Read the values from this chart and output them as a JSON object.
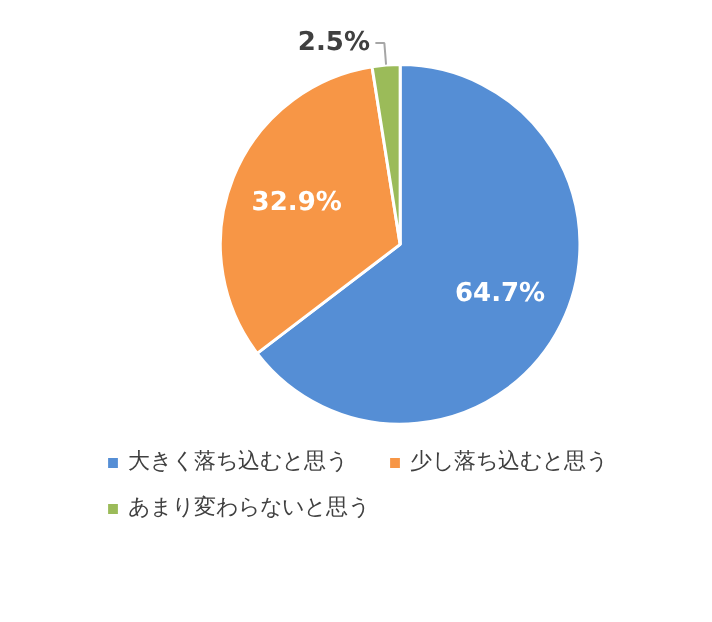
{
  "chart_data": {
    "type": "pie",
    "categories": [
      "大きく落ち込むと思う",
      "少し落ち込むと思う",
      "あまり変わらないと思う"
    ],
    "values": [
      64.7,
      32.9,
      2.5
    ],
    "colors": [
      "#558ed5",
      "#f79646",
      "#9bbb59"
    ],
    "value_labels": [
      "64.7%",
      "32.9%",
      "2.5%"
    ],
    "legend": "bottom"
  }
}
